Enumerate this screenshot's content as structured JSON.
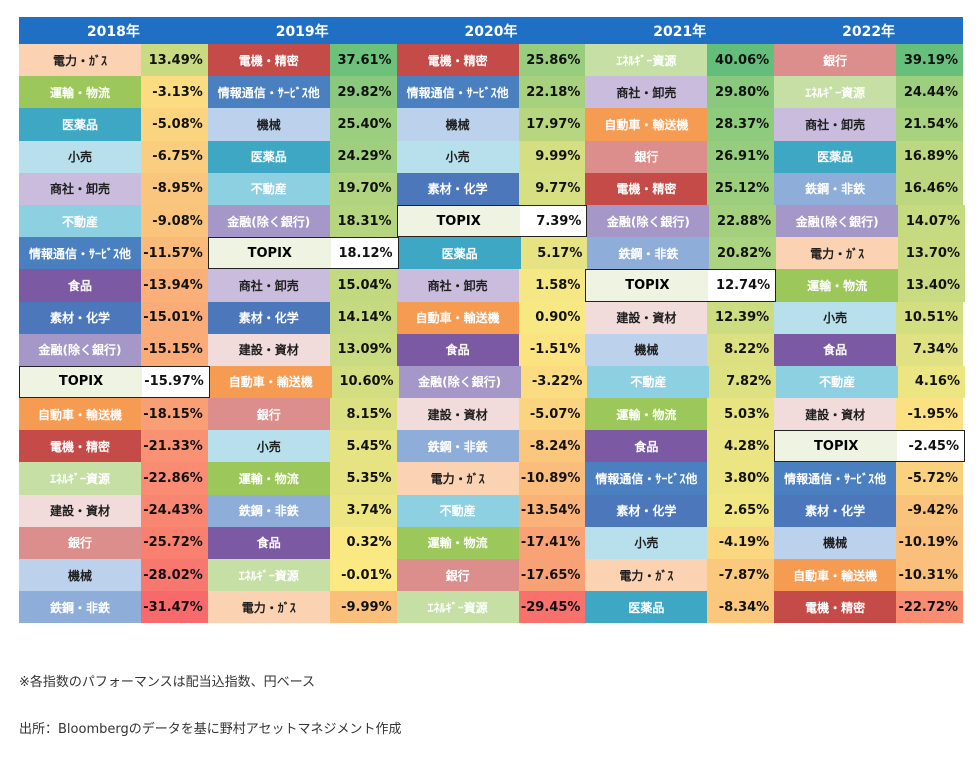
{
  "chart_data": {
    "type": "table",
    "years": [
      "2018年",
      "2019年",
      "2020年",
      "2021年",
      "2022年"
    ],
    "columns": [
      {
        "year": "2018年",
        "rows": [
          {
            "sector": "電力・ｶﾞｽ",
            "value": "13.49%"
          },
          {
            "sector": "運輸・物流",
            "value": "-3.13%"
          },
          {
            "sector": "医薬品",
            "value": "-5.08%"
          },
          {
            "sector": "小売",
            "value": "-6.75%"
          },
          {
            "sector": "商社・卸売",
            "value": "-8.95%"
          },
          {
            "sector": "不動産",
            "value": "-9.08%"
          },
          {
            "sector": "情報通信・ｻｰﾋﾞｽ他",
            "value": "-11.57%"
          },
          {
            "sector": "食品",
            "value": "-13.94%"
          },
          {
            "sector": "素材・化学",
            "value": "-15.01%"
          },
          {
            "sector": "金融(除く銀行)",
            "value": "-15.15%"
          },
          {
            "sector": "TOPIX",
            "value": "-15.97%"
          },
          {
            "sector": "自動車・輸送機",
            "value": "-18.15%"
          },
          {
            "sector": "電機・精密",
            "value": "-21.33%"
          },
          {
            "sector": "ｴﾈﾙｷﾞｰ資源",
            "value": "-22.86%"
          },
          {
            "sector": "建設・資材",
            "value": "-24.43%"
          },
          {
            "sector": "銀行",
            "value": "-25.72%"
          },
          {
            "sector": "機械",
            "value": "-28.02%"
          },
          {
            "sector": "鉄鋼・非鉄",
            "value": "-31.47%"
          }
        ]
      },
      {
        "year": "2019年",
        "rows": [
          {
            "sector": "電機・精密",
            "value": "37.61%"
          },
          {
            "sector": "情報通信・ｻｰﾋﾞｽ他",
            "value": "29.82%"
          },
          {
            "sector": "機械",
            "value": "25.40%"
          },
          {
            "sector": "医薬品",
            "value": "24.29%"
          },
          {
            "sector": "不動産",
            "value": "19.70%"
          },
          {
            "sector": "金融(除く銀行)",
            "value": "18.31%"
          },
          {
            "sector": "TOPIX",
            "value": "18.12%"
          },
          {
            "sector": "商社・卸売",
            "value": "15.04%"
          },
          {
            "sector": "素材・化学",
            "value": "14.14%"
          },
          {
            "sector": "建設・資材",
            "value": "13.09%"
          },
          {
            "sector": "自動車・輸送機",
            "value": "10.60%"
          },
          {
            "sector": "銀行",
            "value": "8.15%"
          },
          {
            "sector": "小売",
            "value": "5.45%"
          },
          {
            "sector": "運輸・物流",
            "value": "5.35%"
          },
          {
            "sector": "鉄鋼・非鉄",
            "value": "3.74%"
          },
          {
            "sector": "食品",
            "value": "0.32%"
          },
          {
            "sector": "ｴﾈﾙｷﾞｰ資源",
            "value": "-0.01%"
          },
          {
            "sector": "電力・ｶﾞｽ",
            "value": "-9.99%"
          }
        ]
      },
      {
        "year": "2020年",
        "rows": [
          {
            "sector": "電機・精密",
            "value": "25.86%"
          },
          {
            "sector": "情報通信・ｻｰﾋﾞｽ他",
            "value": "22.18%"
          },
          {
            "sector": "機械",
            "value": "17.97%"
          },
          {
            "sector": "小売",
            "value": "9.99%"
          },
          {
            "sector": "素材・化学",
            "value": "9.77%"
          },
          {
            "sector": "TOPIX",
            "value": "7.39%"
          },
          {
            "sector": "医薬品",
            "value": "5.17%"
          },
          {
            "sector": "商社・卸売",
            "value": "1.58%"
          },
          {
            "sector": "自動車・輸送機",
            "value": "0.90%"
          },
          {
            "sector": "食品",
            "value": "-1.51%"
          },
          {
            "sector": "金融(除く銀行)",
            "value": "-3.22%"
          },
          {
            "sector": "建設・資材",
            "value": "-5.07%"
          },
          {
            "sector": "鉄鋼・非鉄",
            "value": "-8.24%"
          },
          {
            "sector": "電力・ｶﾞｽ",
            "value": "-10.89%"
          },
          {
            "sector": "不動産",
            "value": "-13.54%"
          },
          {
            "sector": "運輸・物流",
            "value": "-17.41%"
          },
          {
            "sector": "銀行",
            "value": "-17.65%"
          },
          {
            "sector": "ｴﾈﾙｷﾞｰ資源",
            "value": "-29.45%"
          }
        ]
      },
      {
        "year": "2021年",
        "rows": [
          {
            "sector": "ｴﾈﾙｷﾞｰ資源",
            "value": "40.06%"
          },
          {
            "sector": "商社・卸売",
            "value": "29.80%"
          },
          {
            "sector": "自動車・輸送機",
            "value": "28.37%"
          },
          {
            "sector": "銀行",
            "value": "26.91%"
          },
          {
            "sector": "電機・精密",
            "value": "25.12%"
          },
          {
            "sector": "金融(除く銀行)",
            "value": "22.88%"
          },
          {
            "sector": "鉄鋼・非鉄",
            "value": "20.82%"
          },
          {
            "sector": "TOPIX",
            "value": "12.74%"
          },
          {
            "sector": "建設・資材",
            "value": "12.39%"
          },
          {
            "sector": "機械",
            "value": "8.22%"
          },
          {
            "sector": "不動産",
            "value": "7.82%"
          },
          {
            "sector": "運輸・物流",
            "value": "5.03%"
          },
          {
            "sector": "食品",
            "value": "4.28%"
          },
          {
            "sector": "情報通信・ｻｰﾋﾞｽ他",
            "value": "3.80%"
          },
          {
            "sector": "素材・化学",
            "value": "2.65%"
          },
          {
            "sector": "小売",
            "value": "-4.19%"
          },
          {
            "sector": "電力・ｶﾞｽ",
            "value": "-7.87%"
          },
          {
            "sector": "医薬品",
            "value": "-8.34%"
          }
        ]
      },
      {
        "year": "2022年",
        "rows": [
          {
            "sector": "銀行",
            "value": "39.19%"
          },
          {
            "sector": "ｴﾈﾙｷﾞｰ資源",
            "value": "24.44%"
          },
          {
            "sector": "商社・卸売",
            "value": "21.54%"
          },
          {
            "sector": "医薬品",
            "value": "16.89%"
          },
          {
            "sector": "鉄鋼・非鉄",
            "value": "16.46%"
          },
          {
            "sector": "金融(除く銀行)",
            "value": "14.07%"
          },
          {
            "sector": "電力・ｶﾞｽ",
            "value": "13.70%"
          },
          {
            "sector": "運輸・物流",
            "value": "13.40%"
          },
          {
            "sector": "小売",
            "value": "10.51%"
          },
          {
            "sector": "食品",
            "value": "7.34%"
          },
          {
            "sector": "不動産",
            "value": "4.16%"
          },
          {
            "sector": "建設・資材",
            "value": "-1.95%"
          },
          {
            "sector": "TOPIX",
            "value": "-2.45%"
          },
          {
            "sector": "情報通信・ｻｰﾋﾞｽ他",
            "value": "-5.72%"
          },
          {
            "sector": "素材・化学",
            "value": "-9.42%"
          },
          {
            "sector": "機械",
            "value": "-10.19%"
          },
          {
            "sector": "自動車・輸送機",
            "value": "-10.31%"
          },
          {
            "sector": "電機・精密",
            "value": "-22.72%"
          }
        ]
      }
    ],
    "sector_colors": {
      "電力・ｶﾞｽ": "#fbd3b2",
      "運輸・物流": "#9cc75a",
      "医薬品": "#3ea7c4",
      "小売": "#b8e0ec",
      "商社・卸売": "#c9bcdc",
      "不動産": "#8dd0e1",
      "情報通信・ｻｰﾋﾞｽ他": "#4a7fc0",
      "食品": "#7b5aa3",
      "素材・化学": "#4c78bb",
      "金融(除く銀行)": "#a598c8",
      "TOPIX": "#eef3e2",
      "自動車・輸送機": "#f69b52",
      "電機・精密": "#c44b47",
      "ｴﾈﾙｷﾞｰ資源": "#c5dfa4",
      "建設・資材": "#f2dcdb",
      "銀行": "#db8e8b",
      "機械": "#bcd2ec",
      "鉄鋼・非鉄": "#8eaed9"
    },
    "light_text_sectors": [
      "医薬品",
      "情報通信・ｻｰﾋﾞｽ他",
      "食品",
      "素材・化学",
      "金融(除く銀行)",
      "自動車・輸送機",
      "電機・精密",
      "ｴﾈﾙｷﾞｰ資源",
      "銀行",
      "鉄鋼・非鉄",
      "運輸・物流",
      "不動産"
    ],
    "return_color_scale": {
      "high": "#63be7b",
      "mid": "#fbe983",
      "low": "#f8696b"
    }
  },
  "notes": {
    "note1": "※各指数のパフォーマンスは配当込指数、円ベース",
    "note2": "出所：Bloombergのデータを基に野村アセットマネジメント作成"
  },
  "header_color": "#1f6fc5"
}
